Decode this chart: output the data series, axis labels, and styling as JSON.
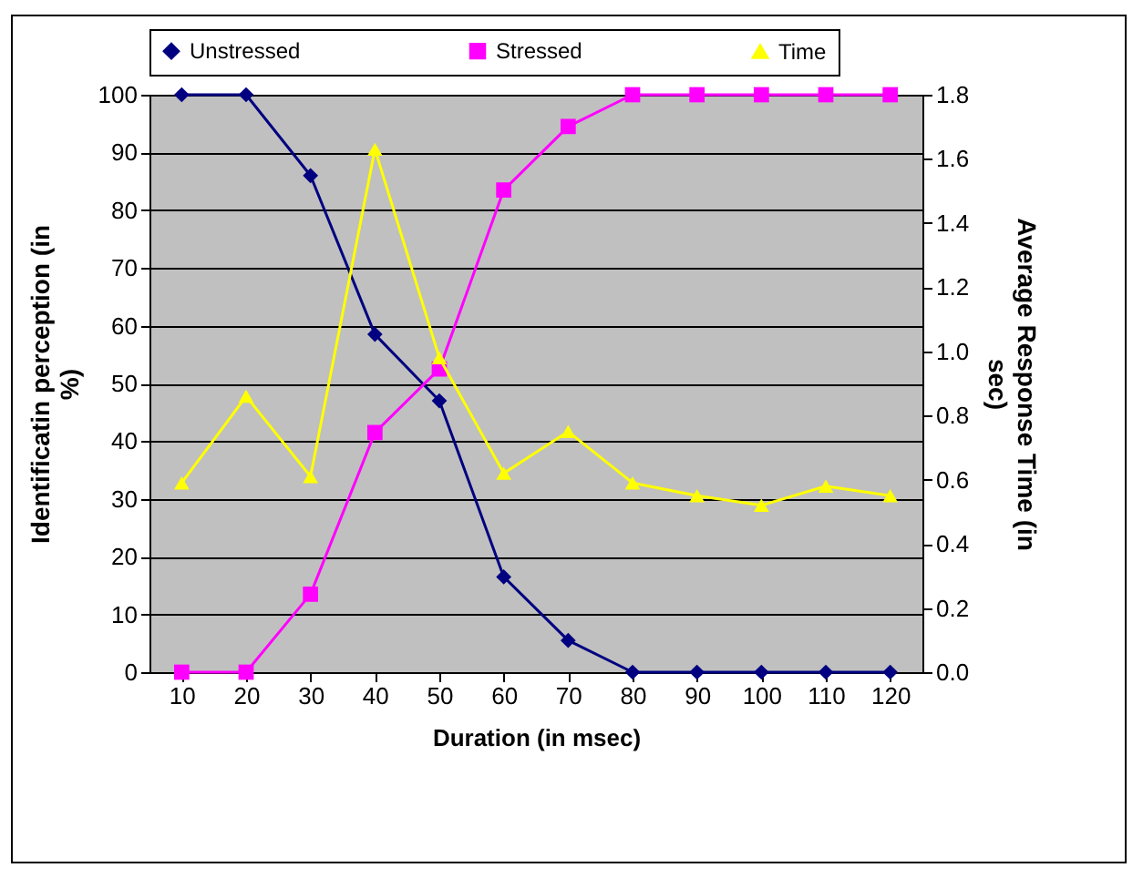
{
  "chart_data": {
    "type": "line",
    "xlabel": "Duration (in msec)",
    "ylabel": "Identificatin perception (in %)",
    "y2label": "Average Response Time (in sec)",
    "categories": [
      "10",
      "20",
      "30",
      "40",
      "50",
      "60",
      "70",
      "80",
      "90",
      "100",
      "110",
      "120"
    ],
    "series": [
      {
        "name": "Unstressed",
        "color": "#000080",
        "marker": "diamond",
        "values": [
          100,
          100,
          86,
          58.5,
          47,
          16.5,
          5.5,
          0,
          0,
          0,
          0,
          0
        ]
      },
      {
        "name": "Stressed",
        "color": "#ff00ff",
        "marker": "square",
        "values": [
          0,
          0,
          13.5,
          41.5,
          52.5,
          83.5,
          94.5,
          100,
          100,
          100,
          100,
          100
        ]
      },
      {
        "name": "Time",
        "color": "#ffff00",
        "marker": "triangle",
        "axis": "y2",
        "values": [
          0.59,
          0.86,
          0.61,
          1.63,
          0.98,
          0.62,
          0.75,
          0.59,
          0.55,
          0.52,
          0.58,
          0.55
        ]
      }
    ],
    "ylim": [
      0,
      100
    ],
    "yticks": [
      0,
      10,
      20,
      30,
      40,
      50,
      60,
      70,
      80,
      90,
      100
    ],
    "y2lim": [
      0,
      1.8
    ],
    "y2ticks": [
      {
        "value": 0,
        "label": "0.0"
      },
      0.2,
      0.4,
      0.6,
      0.8,
      {
        "value": 1,
        "label": "1.0"
      },
      1.2,
      1.4,
      1.6,
      1.8
    ],
    "grid": "y",
    "legend": "top",
    "line_style": "solid"
  }
}
